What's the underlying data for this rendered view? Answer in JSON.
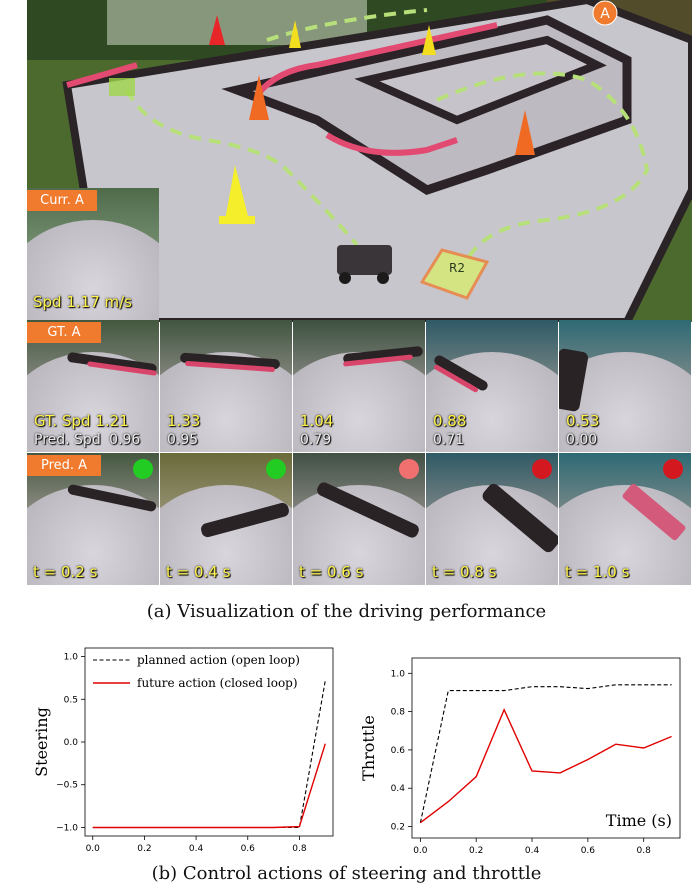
{
  "scene": {
    "corner_marker": "A",
    "region_marker": "R2"
  },
  "current": {
    "tag": "Curr. A",
    "speed_text": "Spd 1.17 m/s"
  },
  "ground_truth": {
    "tag": "GT. A",
    "gt_label_prefix": "GT. Spd",
    "pred_label_prefix": "Pred. Spd",
    "gt_speeds": [
      "1.21",
      "1.33",
      "1.04",
      "0.88",
      "0.53"
    ],
    "pred_speeds": [
      "0.96",
      "0.95",
      "0.79",
      "0.71",
      "0.00"
    ]
  },
  "predicted": {
    "tag": "Pred. A",
    "times": [
      "t = 0.2 s",
      "t = 0.4 s",
      "t = 0.6 s",
      "t = 0.8 s",
      "t = 1.0 s"
    ],
    "dot_colors": [
      "#22cc22",
      "#22cc22",
      "#f07070",
      "#d41820",
      "#d41820"
    ]
  },
  "captions": {
    "a": "(a) Visualization of the driving performance",
    "b": "(b) Control actions of steering and throttle"
  },
  "chart_data": [
    {
      "type": "line",
      "ylabel": "Steering",
      "xlabel": "",
      "xlim": [
        -0.03,
        0.93
      ],
      "ylim": [
        -1.1,
        1.1
      ],
      "xticks": [
        "0.0",
        "0.2",
        "0.4",
        "0.6",
        "0.8"
      ],
      "yticks": [
        "−1.0",
        "−0.5",
        "0.0",
        "0.5",
        "1.0"
      ],
      "legend": "top-left",
      "series": [
        {
          "name": "planned action (open loop)",
          "style": "dashed",
          "color": "#000000",
          "x": [
            0.0,
            0.1,
            0.2,
            0.3,
            0.4,
            0.5,
            0.6,
            0.7,
            0.8,
            0.9
          ],
          "y": [
            -1.0,
            -1.0,
            -1.0,
            -1.0,
            -1.0,
            -1.0,
            -1.0,
            -1.0,
            -1.0,
            0.72
          ]
        },
        {
          "name": "future action (closed loop)",
          "style": "solid",
          "color": "#e00000",
          "x": [
            0.0,
            0.1,
            0.2,
            0.3,
            0.4,
            0.5,
            0.6,
            0.7,
            0.8,
            0.9
          ],
          "y": [
            -1.0,
            -1.0,
            -1.0,
            -1.0,
            -1.0,
            -1.0,
            -1.0,
            -1.0,
            -0.99,
            -0.02
          ]
        }
      ]
    },
    {
      "type": "line",
      "ylabel": "Throttle",
      "xlabel": "Time (s)",
      "xlim": [
        -0.03,
        0.93
      ],
      "ylim": [
        0.14,
        1.08
      ],
      "xticks": [
        "0.0",
        "0.2",
        "0.4",
        "0.6",
        "0.8"
      ],
      "yticks": [
        "0.2",
        "0.4",
        "0.6",
        "0.8",
        "1.0"
      ],
      "series": [
        {
          "name": "planned action (open loop)",
          "style": "dashed",
          "color": "#000000",
          "x": [
            0.0,
            0.1,
            0.2,
            0.3,
            0.4,
            0.5,
            0.6,
            0.7,
            0.8,
            0.9
          ],
          "y": [
            0.22,
            0.91,
            0.91,
            0.91,
            0.93,
            0.93,
            0.92,
            0.94,
            0.94,
            0.94
          ]
        },
        {
          "name": "future action (closed loop)",
          "style": "solid",
          "color": "#e00000",
          "x": [
            0.0,
            0.1,
            0.2,
            0.3,
            0.4,
            0.5,
            0.6,
            0.7,
            0.8,
            0.9
          ],
          "y": [
            0.22,
            0.33,
            0.46,
            0.81,
            0.49,
            0.48,
            0.55,
            0.63,
            0.61,
            0.67
          ]
        }
      ]
    }
  ]
}
